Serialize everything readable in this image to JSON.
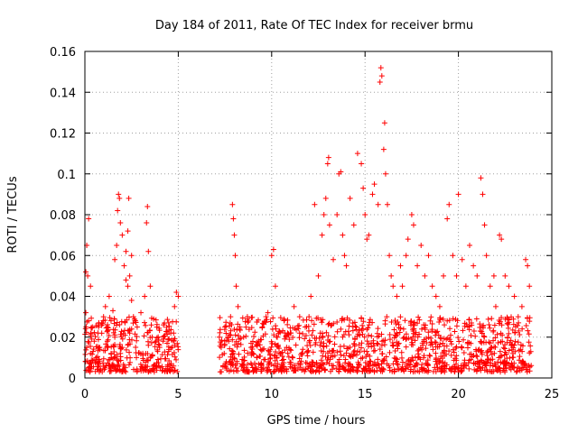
{
  "chart_data": {
    "type": "scatter",
    "title": "Day 184 of 2011, Rate Of TEC Index for receiver brmu",
    "xlabel": "GPS time / hours",
    "ylabel": "ROTI / TECUs",
    "xlim": [
      0,
      25
    ],
    "ylim": [
      0,
      0.16
    ],
    "x_ticks": [
      0,
      5,
      10,
      15,
      20,
      25
    ],
    "x_tick_labels": [
      "0",
      "5",
      "10",
      "15",
      "20",
      "25"
    ],
    "y_ticks": [
      0,
      0.02,
      0.04,
      0.06,
      0.08,
      0.1,
      0.12,
      0.14,
      0.16
    ],
    "y_tick_labels": [
      "0",
      "0.02",
      "0.04",
      "0.06",
      "0.08",
      "0.1",
      "0.12",
      "0.14",
      "0.16"
    ],
    "grid": true,
    "marker": "+",
    "marker_color": "#ff0000",
    "series": [
      {
        "points": [
          [
            0.05,
            0.052
          ],
          [
            0.1,
            0.065
          ],
          [
            0.2,
            0.078
          ],
          [
            0.15,
            0.05
          ],
          [
            0.3,
            0.045
          ],
          [
            0.05,
            0.032
          ],
          [
            0.2,
            0.028
          ],
          [
            0.4,
            0.025
          ],
          [
            0.1,
            0.015
          ],
          [
            0.3,
            0.012
          ],
          [
            0.5,
            0.018
          ],
          [
            0.7,
            0.022
          ],
          [
            0.9,
            0.027
          ],
          [
            0.6,
            0.01
          ],
          [
            0.8,
            0.014
          ],
          [
            1.0,
            0.03
          ],
          [
            1.1,
            0.035
          ],
          [
            1.2,
            0.025
          ],
          [
            1.3,
            0.04
          ],
          [
            1.4,
            0.028
          ],
          [
            1.5,
            0.033
          ],
          [
            1.6,
            0.058
          ],
          [
            1.7,
            0.065
          ],
          [
            1.75,
            0.082
          ],
          [
            1.8,
            0.09
          ],
          [
            1.85,
            0.088
          ],
          [
            1.9,
            0.076
          ],
          [
            2.0,
            0.07
          ],
          [
            2.1,
            0.055
          ],
          [
            2.2,
            0.048
          ],
          [
            2.3,
            0.045
          ],
          [
            2.4,
            0.05
          ],
          [
            2.5,
            0.038
          ],
          [
            2.6,
            0.03
          ],
          [
            2.2,
            0.062
          ],
          [
            2.3,
            0.072
          ],
          [
            2.35,
            0.088
          ],
          [
            2.5,
            0.06
          ],
          [
            1.2,
            0.018
          ],
          [
            1.4,
            0.012
          ],
          [
            1.6,
            0.02
          ],
          [
            2.0,
            0.015
          ],
          [
            2.4,
            0.022
          ],
          [
            2.7,
            0.028
          ],
          [
            2.8,
            0.025
          ],
          [
            3.0,
            0.032
          ],
          [
            3.2,
            0.04
          ],
          [
            3.3,
            0.076
          ],
          [
            3.35,
            0.084
          ],
          [
            3.4,
            0.062
          ],
          [
            3.5,
            0.045
          ],
          [
            3.6,
            0.02
          ],
          [
            3.8,
            0.018
          ],
          [
            4.0,
            0.015
          ],
          [
            4.2,
            0.02
          ],
          [
            4.4,
            0.017
          ],
          [
            4.6,
            0.022
          ],
          [
            4.8,
            0.035
          ],
          [
            4.9,
            0.042
          ],
          [
            5.0,
            0.04
          ],
          [
            3.1,
            0.012
          ],
          [
            3.4,
            0.016
          ],
          [
            3.9,
            0.013
          ],
          [
            4.5,
            0.014
          ],
          [
            7.2,
            0.02
          ],
          [
            7.3,
            0.015
          ],
          [
            7.5,
            0.025
          ],
          [
            7.7,
            0.018
          ],
          [
            7.8,
            0.03
          ],
          [
            7.9,
            0.085
          ],
          [
            7.95,
            0.078
          ],
          [
            8.0,
            0.07
          ],
          [
            8.05,
            0.06
          ],
          [
            8.1,
            0.045
          ],
          [
            8.2,
            0.035
          ],
          [
            8.3,
            0.025
          ],
          [
            8.5,
            0.02
          ],
          [
            8.7,
            0.03
          ],
          [
            8.9,
            0.015
          ],
          [
            9.0,
            0.012
          ],
          [
            9.2,
            0.01
          ],
          [
            9.3,
            0.018
          ],
          [
            9.5,
            0.025
          ],
          [
            9.7,
            0.03
          ],
          [
            9.8,
            0.032
          ],
          [
            10.0,
            0.06
          ],
          [
            10.1,
            0.063
          ],
          [
            10.2,
            0.045
          ],
          [
            10.3,
            0.02
          ],
          [
            10.5,
            0.012
          ],
          [
            10.8,
            0.015
          ],
          [
            11.0,
            0.022
          ],
          [
            11.2,
            0.035
          ],
          [
            11.5,
            0.03
          ],
          [
            11.8,
            0.025
          ],
          [
            12.0,
            0.03
          ],
          [
            12.1,
            0.04
          ],
          [
            12.3,
            0.085
          ],
          [
            12.5,
            0.05
          ],
          [
            12.7,
            0.07
          ],
          [
            12.8,
            0.08
          ],
          [
            12.9,
            0.088
          ],
          [
            13.0,
            0.105
          ],
          [
            13.05,
            0.108
          ],
          [
            13.1,
            0.075
          ],
          [
            13.3,
            0.058
          ],
          [
            13.5,
            0.08
          ],
          [
            13.6,
            0.1
          ],
          [
            13.7,
            0.101
          ],
          [
            13.8,
            0.07
          ],
          [
            13.9,
            0.06
          ],
          [
            14.0,
            0.055
          ],
          [
            14.2,
            0.088
          ],
          [
            14.4,
            0.075
          ],
          [
            14.6,
            0.11
          ],
          [
            14.8,
            0.105
          ],
          [
            14.9,
            0.093
          ],
          [
            15.0,
            0.08
          ],
          [
            15.1,
            0.068
          ],
          [
            15.2,
            0.07
          ],
          [
            15.4,
            0.09
          ],
          [
            15.5,
            0.095
          ],
          [
            15.7,
            0.085
          ],
          [
            15.8,
            0.145
          ],
          [
            15.85,
            0.152
          ],
          [
            15.9,
            0.148
          ],
          [
            16.0,
            0.112
          ],
          [
            16.05,
            0.125
          ],
          [
            16.1,
            0.1
          ],
          [
            16.2,
            0.085
          ],
          [
            16.3,
            0.06
          ],
          [
            16.4,
            0.05
          ],
          [
            16.5,
            0.045
          ],
          [
            16.7,
            0.04
          ],
          [
            16.9,
            0.055
          ],
          [
            17.0,
            0.045
          ],
          [
            17.2,
            0.06
          ],
          [
            17.3,
            0.068
          ],
          [
            17.5,
            0.08
          ],
          [
            17.6,
            0.075
          ],
          [
            17.8,
            0.055
          ],
          [
            18.0,
            0.065
          ],
          [
            18.2,
            0.05
          ],
          [
            18.4,
            0.06
          ],
          [
            18.6,
            0.045
          ],
          [
            18.8,
            0.04
          ],
          [
            19.0,
            0.035
          ],
          [
            19.2,
            0.05
          ],
          [
            19.4,
            0.078
          ],
          [
            19.5,
            0.085
          ],
          [
            19.7,
            0.06
          ],
          [
            19.9,
            0.05
          ],
          [
            20.0,
            0.09
          ],
          [
            20.2,
            0.058
          ],
          [
            20.4,
            0.045
          ],
          [
            20.6,
            0.065
          ],
          [
            20.8,
            0.055
          ],
          [
            21.0,
            0.05
          ],
          [
            21.2,
            0.098
          ],
          [
            21.3,
            0.09
          ],
          [
            21.4,
            0.075
          ],
          [
            21.5,
            0.06
          ],
          [
            21.7,
            0.045
          ],
          [
            21.9,
            0.05
          ],
          [
            22.0,
            0.035
          ],
          [
            22.2,
            0.07
          ],
          [
            22.3,
            0.068
          ],
          [
            22.5,
            0.05
          ],
          [
            22.7,
            0.045
          ],
          [
            23.0,
            0.04
          ],
          [
            23.2,
            0.03
          ],
          [
            23.4,
            0.035
          ],
          [
            23.6,
            0.058
          ],
          [
            23.7,
            0.055
          ],
          [
            23.8,
            0.045
          ]
        ]
      }
    ],
    "dense_band": {
      "segments": [
        [
          0,
          5.0
        ],
        [
          7.2,
          23.9
        ]
      ],
      "y_low": 0.003,
      "y_high": 0.03
    }
  }
}
